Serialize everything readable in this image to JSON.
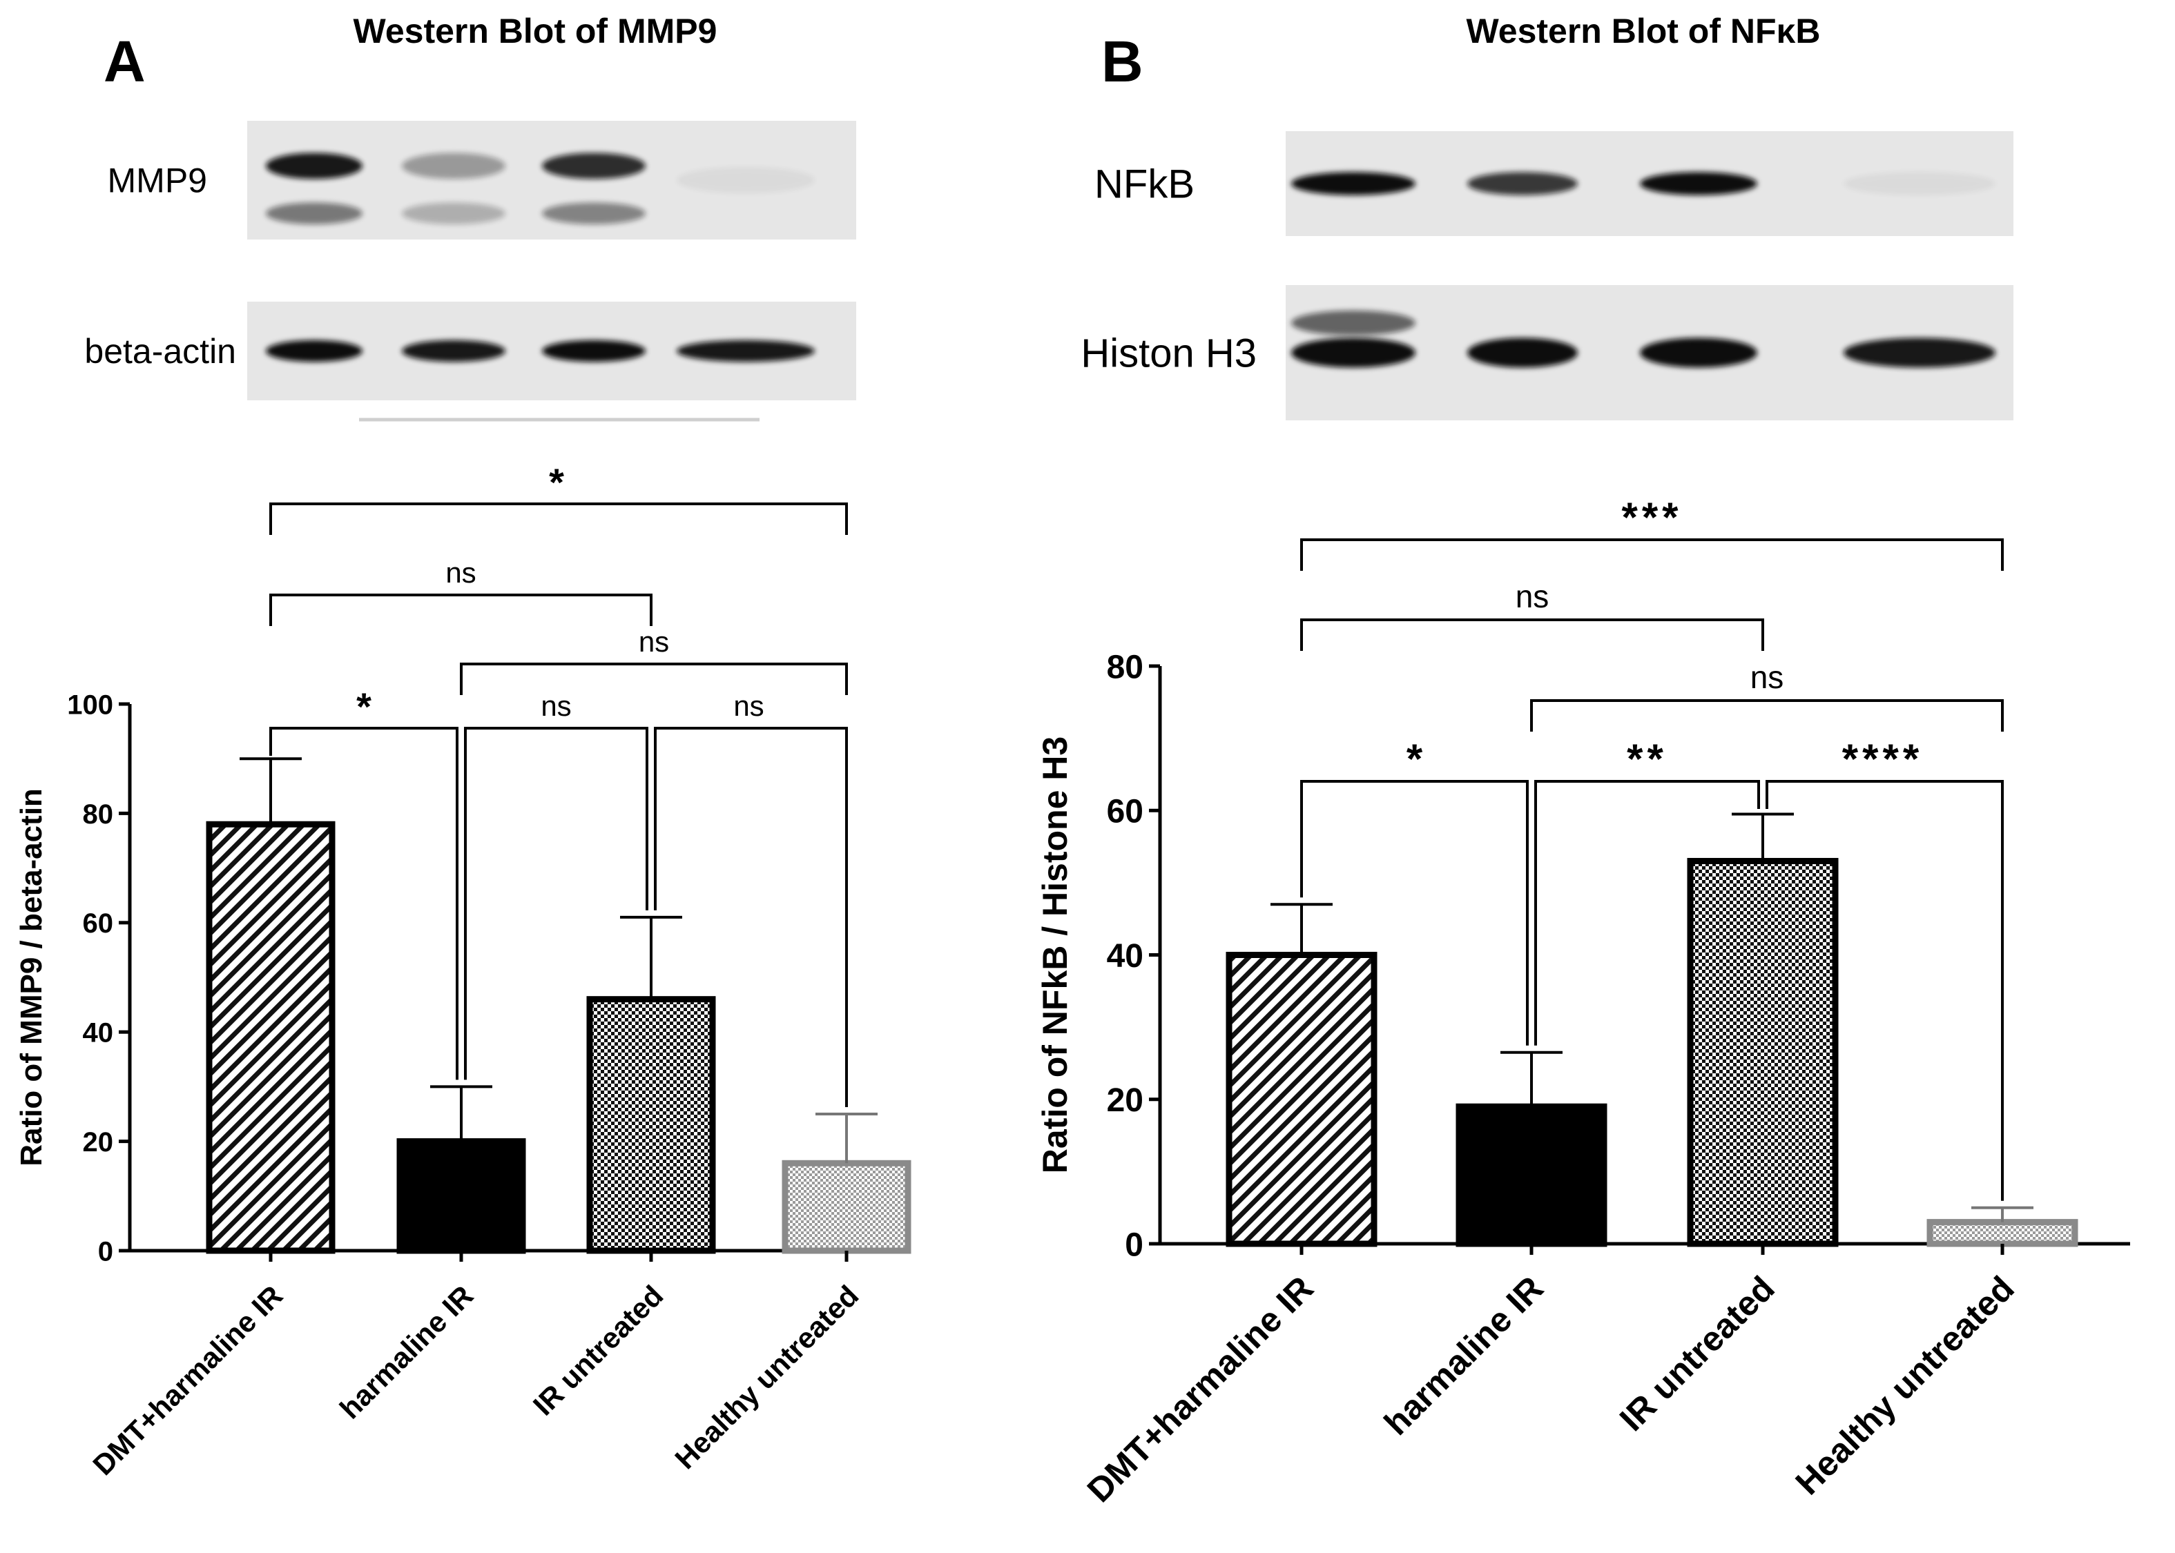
{
  "panels": [
    {
      "letter": "A",
      "title": "Western Blot of MMP9",
      "blot": {
        "rows": [
          {
            "label": "MMP9",
            "lane_intensity": [
              0.95,
              0.35,
              0.85,
              0.05
            ],
            "lower_band_intensity": [
              0.5,
              0.25,
              0.45,
              0.0
            ]
          },
          {
            "label": "beta-actin",
            "lane_intensity": [
              1.0,
              0.95,
              1.0,
              0.95
            ],
            "lower_band_intensity": [
              0,
              0,
              0,
              0
            ]
          }
        ]
      },
      "chart_data": {
        "type": "bar",
        "title": "",
        "xlabel": "",
        "ylabel": "Ratio of MMP9 / beta-actin",
        "ylim": [
          0,
          100
        ],
        "yticks": [
          "0",
          "20",
          "40",
          "60",
          "80",
          "100"
        ],
        "ytick_values": [
          0,
          20,
          40,
          60,
          80,
          100
        ],
        "categories": [
          "DMT+harmaline IR",
          "harmaline IR",
          "IR untreated",
          "Healthy untreated"
        ],
        "values": [
          78,
          20,
          46,
          16
        ],
        "errors": [
          12,
          10,
          15,
          9
        ],
        "patterns": [
          "diagonal",
          "solid",
          "checker",
          "fine-gray"
        ],
        "grid": false,
        "legend": "none",
        "brackets": [
          {
            "from": 0,
            "to": 3,
            "label": "*",
            "level": 1
          },
          {
            "from": 0,
            "to": 2,
            "label": "ns",
            "level": 2
          },
          {
            "from": 1,
            "to": 3,
            "label": "ns",
            "level": 3
          },
          {
            "from": 0,
            "to": 1,
            "label": "*",
            "level": 4
          },
          {
            "from": 1,
            "to": 2,
            "label": "ns",
            "level": 4
          },
          {
            "from": 2,
            "to": 3,
            "label": "ns",
            "level": 4
          }
        ]
      }
    },
    {
      "letter": "B",
      "title": "Western Blot of NFκB",
      "blot": {
        "rows": [
          {
            "label": "NFkB",
            "lane_intensity": [
              1.0,
              0.8,
              1.0,
              0.05
            ],
            "lower_band_intensity": [
              0,
              0,
              0,
              0
            ]
          },
          {
            "label": "Histon H3",
            "lane_intensity": [
              1.0,
              1.0,
              1.0,
              0.95
            ],
            "lower_band_intensity": [
              0.6,
              0,
              0,
              0
            ]
          }
        ]
      },
      "chart_data": {
        "type": "bar",
        "title": "",
        "xlabel": "",
        "ylabel": "Ratio of NFkB / Histone H3",
        "ylim": [
          0,
          80
        ],
        "yticks": [
          "0",
          "20",
          "40",
          "60",
          "80"
        ],
        "ytick_values": [
          0,
          20,
          40,
          60,
          80
        ],
        "categories": [
          "DMT+harmaline IR",
          "harmaline IR",
          "IR untreated",
          "Healthy untreated"
        ],
        "values": [
          40,
          19,
          53,
          3
        ],
        "errors": [
          7,
          7.5,
          6.5,
          2
        ],
        "patterns": [
          "diagonal",
          "solid",
          "checker",
          "fine-gray"
        ],
        "grid": false,
        "legend": "none",
        "brackets": [
          {
            "from": 0,
            "to": 3,
            "label": "***",
            "level": 1
          },
          {
            "from": 0,
            "to": 2,
            "label": "ns",
            "level": 2
          },
          {
            "from": 1,
            "to": 3,
            "label": "ns",
            "level": 3
          },
          {
            "from": 0,
            "to": 1,
            "label": "*",
            "level": 4
          },
          {
            "from": 1,
            "to": 2,
            "label": "**",
            "level": 4
          },
          {
            "from": 2,
            "to": 3,
            "label": "****",
            "level": 4
          }
        ]
      }
    }
  ],
  "colors": {
    "blot_background": "#e6e6e6",
    "band": "#111111",
    "axis": "#000000",
    "bar_edge_dark": "#000000",
    "bar_edge_light": "#8a8a8a"
  }
}
